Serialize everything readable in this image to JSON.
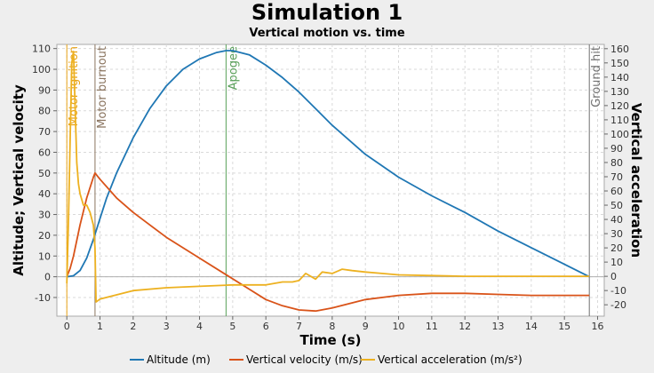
{
  "chart_data": {
    "type": "line",
    "title": "Simulation 1",
    "subtitle": "Vertical motion vs. time",
    "xlabel": "Time (s)",
    "ylabel_left": "Altitude; Vertical velocity",
    "ylabel_right": "Vertical acceleration",
    "xlim": [
      -0.3,
      16.2
    ],
    "ylim_left": [
      -19,
      112
    ],
    "ylim_right": [
      -28,
      163
    ],
    "x_ticks": [
      0,
      1,
      2,
      3,
      4,
      5,
      6,
      7,
      8,
      9,
      10,
      11,
      12,
      13,
      14,
      15,
      16
    ],
    "y_left_ticks": [
      -10,
      0,
      10,
      20,
      30,
      40,
      50,
      60,
      70,
      80,
      90,
      100,
      110
    ],
    "y_right_ticks": [
      -20,
      -10,
      0,
      10,
      20,
      30,
      40,
      50,
      60,
      70,
      80,
      90,
      100,
      110,
      120,
      130,
      140,
      150,
      160
    ],
    "grid": true,
    "legend_position": "bottom",
    "events": [
      {
        "label": "Motor ignition",
        "x": 0.0,
        "color": "#e8a317"
      },
      {
        "label": "Motor burnout",
        "x": 0.85,
        "color": "#8b7560"
      },
      {
        "label": "Apogee",
        "x": 4.8,
        "color": "#5aa05a"
      },
      {
        "label": "Ground hit",
        "x": 15.75,
        "color": "#707070"
      }
    ],
    "series": [
      {
        "name": "Altitude (m)",
        "axis": "left",
        "color": "#1f77b4",
        "x": [
          0,
          0.2,
          0.4,
          0.6,
          0.8,
          1.0,
          1.2,
          1.5,
          2.0,
          2.5,
          3.0,
          3.5,
          4.0,
          4.5,
          4.8,
          5.0,
          5.5,
          6.0,
          6.5,
          7.0,
          7.5,
          8.0,
          9.0,
          10.0,
          11.0,
          12.0,
          13.0,
          14.0,
          15.0,
          15.5,
          15.75
        ],
        "values": [
          0,
          0.5,
          3,
          9,
          18,
          28,
          38,
          50,
          67,
          81,
          92,
          100,
          105,
          108,
          109,
          109,
          107,
          102,
          96,
          89,
          81,
          73,
          59,
          48,
          39,
          31,
          22,
          14,
          6,
          2,
          0
        ]
      },
      {
        "name": "Vertical velocity (m/s)",
        "axis": "left",
        "color": "#d95319",
        "x": [
          0,
          0.1,
          0.2,
          0.4,
          0.6,
          0.8,
          0.85,
          1.0,
          1.5,
          2.0,
          2.5,
          3.0,
          4.0,
          4.8,
          5.5,
          6.0,
          6.5,
          7.0,
          7.5,
          8.0,
          9.0,
          10.0,
          11.0,
          12.0,
          13.0,
          14.0,
          15.0,
          15.75
        ],
        "values": [
          0,
          4,
          10,
          25,
          38,
          48,
          50,
          47,
          38,
          31,
          25,
          19,
          9,
          1,
          -6,
          -11,
          -14,
          -16,
          -16.5,
          -15,
          -11,
          -9,
          -8,
          -8,
          -8.5,
          -9,
          -9,
          -9
        ]
      },
      {
        "name": "Vertical acceleration (m/s²)",
        "axis": "right",
        "color": "#edb120",
        "x": [
          0,
          0.05,
          0.1,
          0.15,
          0.2,
          0.25,
          0.3,
          0.35,
          0.4,
          0.5,
          0.6,
          0.7,
          0.8,
          0.85,
          0.88,
          1.0,
          1.5,
          2.0,
          3.0,
          4.0,
          5.0,
          6.0,
          6.5,
          6.8,
          7.0,
          7.2,
          7.5,
          7.7,
          8.0,
          8.3,
          8.6,
          9.0,
          9.5,
          10.0,
          11.0,
          12.0,
          13.0,
          14.0,
          15.0,
          15.75
        ],
        "values": [
          -5,
          40,
          95,
          150,
          158,
          120,
          80,
          65,
          58,
          50,
          50,
          45,
          36,
          20,
          -18,
          -16,
          -13,
          -10,
          -8,
          -7,
          -6,
          -6,
          -4,
          -4,
          -3,
          2,
          -2,
          3,
          2,
          5,
          4,
          3,
          2,
          1,
          0.5,
          0,
          0,
          0,
          0,
          0
        ]
      }
    ]
  }
}
